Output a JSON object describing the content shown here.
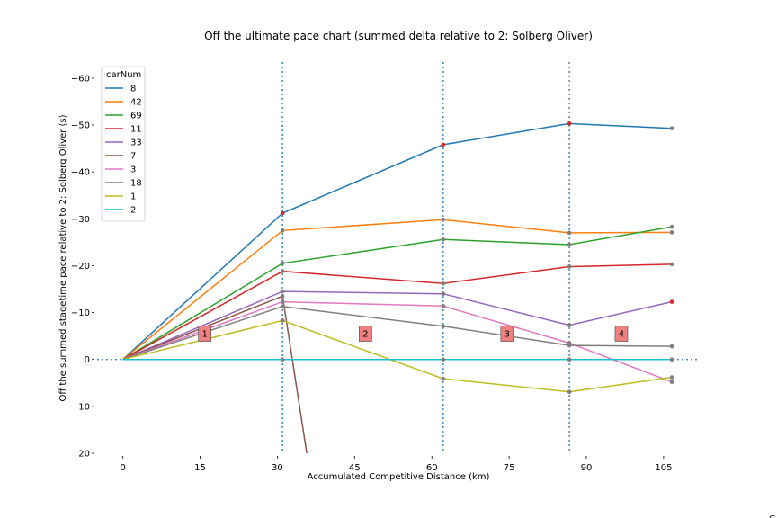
{
  "chart_data": {
    "type": "line",
    "title": "Off the ultimate pace chart (summed delta relative to 2: Solberg Oliver)",
    "xlabel": "Accumulated Competitive Distance (km)",
    "ylabel": "Off the summed stagetime pace relative to 2: Solberg Oliver (s)",
    "xlim": [
      -5,
      112
    ],
    "ylim": [
      20,
      -64
    ],
    "y_inverted": true,
    "x_ticks": [
      0,
      15,
      30,
      45,
      60,
      75,
      90,
      105
    ],
    "y_ticks": [
      -60,
      -50,
      -40,
      -30,
      -20,
      -10,
      0,
      10,
      20
    ],
    "grid": false,
    "legend": {
      "title": "carNum",
      "position": "top-left"
    },
    "stage_distances": [
      31.0,
      62.2,
      86.7
    ],
    "stage_labels": [
      {
        "text": "1",
        "x": 15.9,
        "y": -5.5
      },
      {
        "text": "2",
        "x": 47.1,
        "y": -5.5
      },
      {
        "text": "3",
        "x": 74.6,
        "y": -5.5
      },
      {
        "text": "4",
        "x": 96.8,
        "y": -5.5
      }
    ],
    "x": [
      0,
      31.0,
      62.2,
      86.7,
      106.6
    ],
    "series": [
      {
        "name": "8",
        "color": "#1f77b4",
        "values": [
          0,
          -31.2,
          -45.8,
          -50.3,
          -49.3
        ]
      },
      {
        "name": "42",
        "color": "#ff7f0e",
        "values": [
          0,
          -27.5,
          -29.8,
          -27.0,
          -27.1
        ]
      },
      {
        "name": "69",
        "color": "#2ca02c",
        "values": [
          0,
          -20.5,
          -25.6,
          -24.5,
          -28.3
        ]
      },
      {
        "name": "11",
        "color": "#d62728",
        "values": [
          0,
          -18.8,
          -16.2,
          -19.8,
          -20.3
        ]
      },
      {
        "name": "33",
        "color": "#9467bd",
        "values": [
          0,
          -14.5,
          -14.0,
          -7.3,
          -12.3
        ]
      },
      {
        "name": "7",
        "color": "#8c564b",
        "values": [
          0,
          -13.5,
          null,
          null,
          null
        ],
        "extra_points": [
          [
            35.7,
            20
          ]
        ]
      },
      {
        "name": "3",
        "color": "#e377c2",
        "values": [
          0,
          -12.3,
          -11.4,
          -3.5,
          4.8
        ]
      },
      {
        "name": "18",
        "color": "#7f7f7f",
        "values": [
          0,
          -11.3,
          -7.1,
          -3.0,
          -2.8
        ]
      },
      {
        "name": "1",
        "color": "#bcbd22",
        "values": [
          0,
          -8.3,
          4.1,
          6.9,
          3.8
        ]
      },
      {
        "name": "2",
        "color": "#17becf",
        "values": [
          0,
          0,
          0,
          0,
          0
        ]
      }
    ],
    "marker_colors": {
      "8": [
        "#d62728",
        "#d62728",
        "#d62728",
        "#7f7f7f"
      ],
      "42": [
        "#7f7f7f",
        "#7f7f7f",
        "#7f7f7f",
        "#7f7f7f"
      ],
      "69": [
        "#7f7f7f",
        "#7f7f7f",
        "#7f7f7f",
        "#7f7f7f"
      ],
      "11": [
        "#7f7f7f",
        "#7f7f7f",
        "#7f7f7f",
        "#7f7f7f"
      ],
      "33": [
        "#7f7f7f",
        "#7f7f7f",
        "#7f7f7f",
        "#d62728"
      ],
      "7": [
        "#7f7f7f"
      ],
      "3": [
        "#7f7f7f",
        "#7f7f7f",
        "#7f7f7f",
        "#7f7f7f"
      ],
      "18": [
        "#7f7f7f",
        "#7f7f7f",
        "#7f7f7f",
        "#7f7f7f"
      ],
      "1": [
        "#7f7f7f",
        "#7f7f7f",
        "#7f7f7f",
        "#7f7f7f"
      ],
      "2": [
        "#7f7f7f",
        "#7f7f7f",
        "#7f7f7f",
        "#7f7f7f"
      ]
    },
    "overflow_text": "C"
  }
}
